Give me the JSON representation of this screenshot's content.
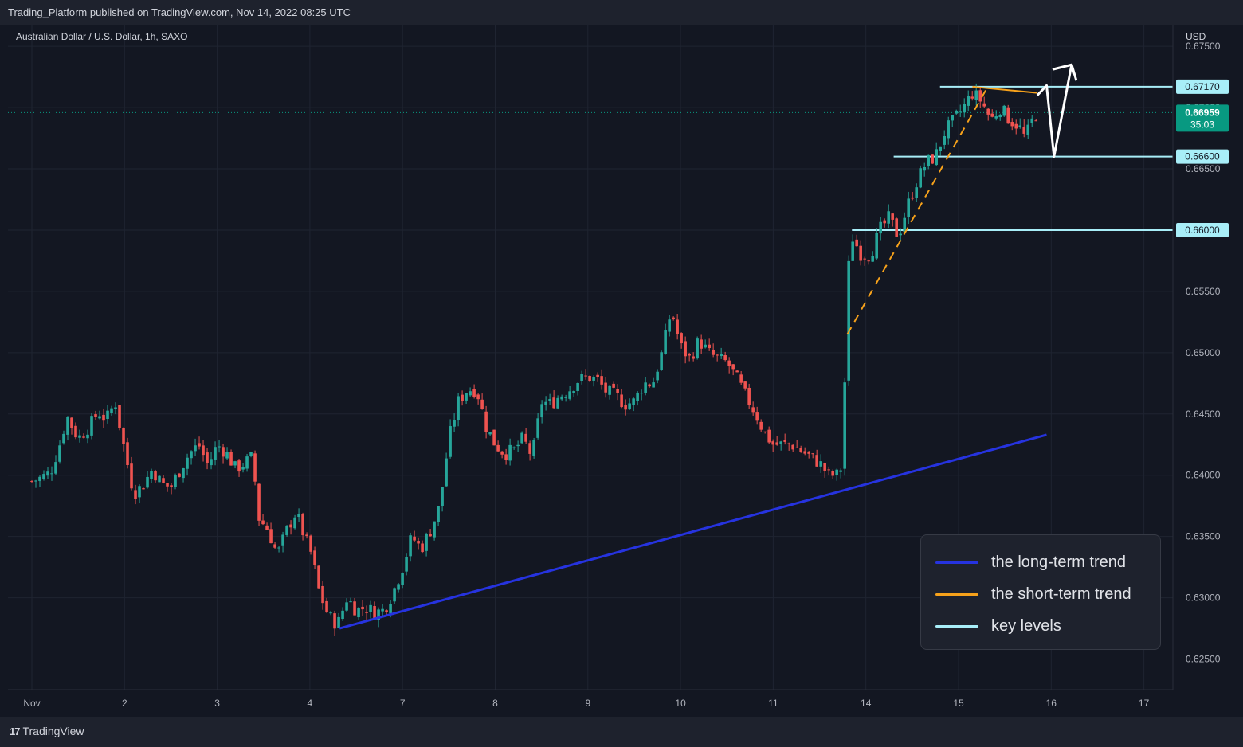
{
  "header": {
    "publisher": "Trading_Platform published on TradingView.com, Nov 14, 2022 08:25 UTC",
    "symbol": "Australian Dollar / U.S. Dollar, 1h, SAXO"
  },
  "footer": {
    "brand": "TradingView",
    "logo_glyph": "17"
  },
  "colors": {
    "background": "#131722",
    "grid": "#1f2431",
    "up": "#26a69a",
    "down": "#ef5350",
    "long_trend": "#2633e0",
    "short_trend": "#f7a21b",
    "key_level": "#a8eef8",
    "current_price_tag": "#089981"
  },
  "chart_data": {
    "type": "candlestick",
    "currency_label": "USD",
    "x_tick_labels": [
      "Nov",
      "2",
      "3",
      "4",
      "7",
      "8",
      "9",
      "10",
      "11",
      "14",
      "15",
      "16",
      "17"
    ],
    "y_tick_labels": [
      "0.62500",
      "0.63000",
      "0.63500",
      "0.64000",
      "0.64500",
      "0.65000",
      "0.65500",
      "0.66000",
      "0.66500",
      "0.67000",
      "0.67500"
    ],
    "ylim": [
      0.6225,
      0.6767
    ],
    "xlim": [
      0,
      12.8
    ],
    "close_path": [
      [
        0,
        0.6395
      ],
      [
        0.1,
        0.6398
      ],
      [
        0.2,
        0.6402
      ],
      [
        0.3,
        0.6425
      ],
      [
        0.38,
        0.6448
      ],
      [
        0.5,
        0.643
      ],
      [
        0.62,
        0.644
      ],
      [
        0.72,
        0.6452
      ],
      [
        0.8,
        0.6445
      ],
      [
        0.9,
        0.646
      ],
      [
        1.0,
        0.642
      ],
      [
        1.1,
        0.6385
      ],
      [
        1.2,
        0.6392
      ],
      [
        1.3,
        0.6405
      ],
      [
        1.4,
        0.6393
      ],
      [
        1.5,
        0.639
      ],
      [
        1.6,
        0.6405
      ],
      [
        1.7,
        0.6418
      ],
      [
        1.8,
        0.6425
      ],
      [
        1.9,
        0.6408
      ],
      [
        2.0,
        0.6425
      ],
      [
        2.1,
        0.6418
      ],
      [
        2.2,
        0.6405
      ],
      [
        2.3,
        0.641
      ],
      [
        2.38,
        0.6415
      ],
      [
        2.45,
        0.6365
      ],
      [
        2.55,
        0.6355
      ],
      [
        2.65,
        0.6335
      ],
      [
        2.75,
        0.6355
      ],
      [
        2.85,
        0.637
      ],
      [
        2.95,
        0.6348
      ],
      [
        3.02,
        0.6335
      ],
      [
        3.1,
        0.6305
      ],
      [
        3.2,
        0.6285
      ],
      [
        3.3,
        0.6278
      ],
      [
        3.4,
        0.63
      ],
      [
        3.5,
        0.629
      ],
      [
        3.6,
        0.6292
      ],
      [
        3.7,
        0.6288
      ],
      [
        3.8,
        0.629
      ],
      [
        3.9,
        0.6305
      ],
      [
        4.0,
        0.6325
      ],
      [
        4.1,
        0.635
      ],
      [
        4.2,
        0.634
      ],
      [
        4.3,
        0.6355
      ],
      [
        4.4,
        0.6375
      ],
      [
        4.5,
        0.643
      ],
      [
        4.6,
        0.646
      ],
      [
        4.7,
        0.647
      ],
      [
        4.8,
        0.647
      ],
      [
        4.9,
        0.644
      ],
      [
        5.0,
        0.6425
      ],
      [
        5.1,
        0.6418
      ],
      [
        5.2,
        0.642
      ],
      [
        5.3,
        0.643
      ],
      [
        5.4,
        0.6415
      ],
      [
        5.5,
        0.646
      ],
      [
        5.6,
        0.6458
      ],
      [
        5.7,
        0.6465
      ],
      [
        5.8,
        0.647
      ],
      [
        5.9,
        0.6478
      ],
      [
        6.0,
        0.648
      ],
      [
        6.1,
        0.6478
      ],
      [
        6.2,
        0.6468
      ],
      [
        6.3,
        0.6465
      ],
      [
        6.4,
        0.6458
      ],
      [
        6.5,
        0.646
      ],
      [
        6.6,
        0.6475
      ],
      [
        6.7,
        0.6475
      ],
      [
        6.8,
        0.65
      ],
      [
        6.9,
        0.6535
      ],
      [
        7.0,
        0.6505
      ],
      [
        7.1,
        0.6495
      ],
      [
        7.2,
        0.651
      ],
      [
        7.3,
        0.65
      ],
      [
        7.4,
        0.6495
      ],
      [
        7.5,
        0.6492
      ],
      [
        7.6,
        0.648
      ],
      [
        7.7,
        0.6465
      ],
      [
        7.8,
        0.6452
      ],
      [
        7.9,
        0.6435
      ],
      [
        8.0,
        0.6425
      ],
      [
        8.1,
        0.6425
      ],
      [
        8.2,
        0.6425
      ],
      [
        8.3,
        0.642
      ],
      [
        8.4,
        0.6415
      ],
      [
        8.5,
        0.641
      ],
      [
        8.6,
        0.64
      ],
      [
        8.7,
        0.64
      ],
      [
        8.75,
        0.641
      ],
      [
        8.8,
        0.656
      ],
      [
        8.85,
        0.6595
      ],
      [
        8.95,
        0.658
      ],
      [
        9.05,
        0.658
      ],
      [
        9.15,
        0.66
      ],
      [
        9.25,
        0.661
      ],
      [
        9.35,
        0.6595
      ],
      [
        9.45,
        0.662
      ],
      [
        9.55,
        0.664
      ],
      [
        9.65,
        0.6655
      ],
      [
        9.75,
        0.666
      ],
      [
        9.85,
        0.668
      ],
      [
        9.95,
        0.669
      ],
      [
        10.05,
        0.67
      ],
      [
        10.15,
        0.6712
      ],
      [
        10.25,
        0.6705
      ],
      [
        10.35,
        0.669
      ],
      [
        10.45,
        0.67
      ],
      [
        10.55,
        0.669
      ],
      [
        10.65,
        0.6685
      ],
      [
        10.72,
        0.6675
      ],
      [
        10.8,
        0.669
      ],
      [
        10.85,
        0.66959
      ]
    ],
    "current_price": {
      "price": 0.66959,
      "label": "0.66959",
      "countdown": "35:03"
    },
    "key_levels": [
      {
        "price": 0.6717,
        "label": "0.67170",
        "from_x": 9.8
      },
      {
        "price": 0.666,
        "label": "0.66600",
        "from_x": 9.3
      },
      {
        "price": 0.66,
        "label": "0.66000",
        "from_x": 8.85
      }
    ],
    "long_term_trend": {
      "from": [
        3.32,
        0.6275
      ],
      "to": [
        10.95,
        0.6433
      ]
    },
    "short_term_trend_dashed": {
      "from": [
        8.8,
        0.6515
      ],
      "to": [
        10.3,
        0.6715
      ]
    },
    "short_term_trend_solid": {
      "from": [
        10.15,
        0.6717
      ],
      "to": [
        10.85,
        0.6712
      ]
    },
    "projection_path": [
      [
        10.85,
        0.671
      ],
      [
        10.95,
        0.6718
      ],
      [
        11.03,
        0.666
      ],
      [
        11.22,
        0.6735
      ]
    ],
    "legend": {
      "items": [
        {
          "label": "the long-term trend",
          "color": "#2633e0"
        },
        {
          "label": "the short-term trend",
          "color": "#f7a21b"
        },
        {
          "label": "key levels",
          "color": "#a8eef8"
        }
      ]
    }
  }
}
